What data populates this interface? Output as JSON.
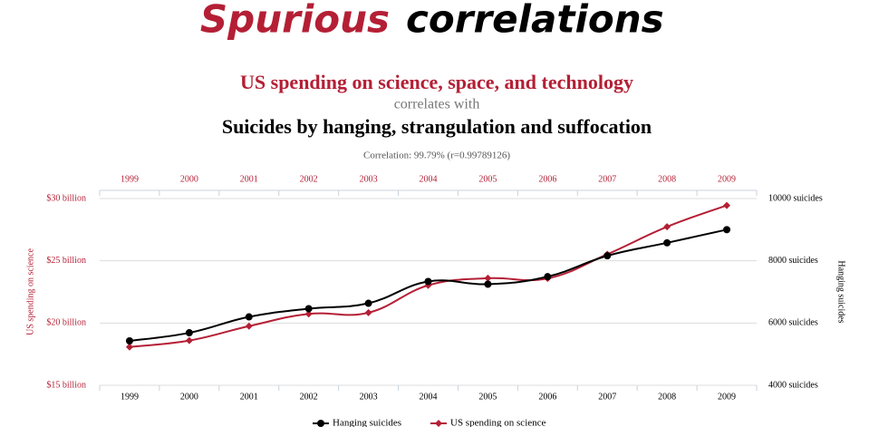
{
  "header": [
    "Spurious",
    "correlations"
  ],
  "chart_data": {
    "type": "line",
    "title": "US spending on science, space, and technology",
    "connector": "correlates with",
    "subtitle": "Suicides by hanging, strangulation and suffocation",
    "annotation": "Correlation: 99.79% (r=0.99789126)",
    "ylabel": "US spending on science",
    "y2label": "Hanging suicides",
    "categories": [
      "1999",
      "2000",
      "2001",
      "2002",
      "2003",
      "2004",
      "2005",
      "2006",
      "2007",
      "2008",
      "2009"
    ],
    "series": [
      {
        "name": "Hanging suicides",
        "color": "#000000",
        "axis": "y2",
        "marker": "circle",
        "values": [
          5427,
          5688,
          6198,
          6462,
          6635,
          7336,
          7248,
          7491,
          8161,
          8578,
          9000
        ]
      },
      {
        "name": "US spending on science",
        "color": "#b41f35",
        "marker": "diamond",
        "values": [
          18.079,
          18.594,
          19.753,
          20.734,
          20.831,
          23.029,
          23.597,
          23.584,
          25.525,
          27.731,
          29.449
        ]
      }
    ],
    "ylim": [
      15,
      30
    ],
    "yticks": [
      {
        "value": 15,
        "label": "$15 billion"
      },
      {
        "value": 20,
        "label": "$20 billion"
      },
      {
        "value": 25,
        "label": "$25 billion"
      },
      {
        "value": 30,
        "label": "$30 billion"
      }
    ],
    "y2lim": [
      4000,
      10000
    ],
    "y2ticks": [
      {
        "value": 4000,
        "label": "4000 suicides"
      },
      {
        "value": 6000,
        "label": "6000 suicides"
      },
      {
        "value": 8000,
        "label": "8000 suicides"
      },
      {
        "value": 10000,
        "label": "10000 suicides"
      }
    ],
    "grid": true
  }
}
